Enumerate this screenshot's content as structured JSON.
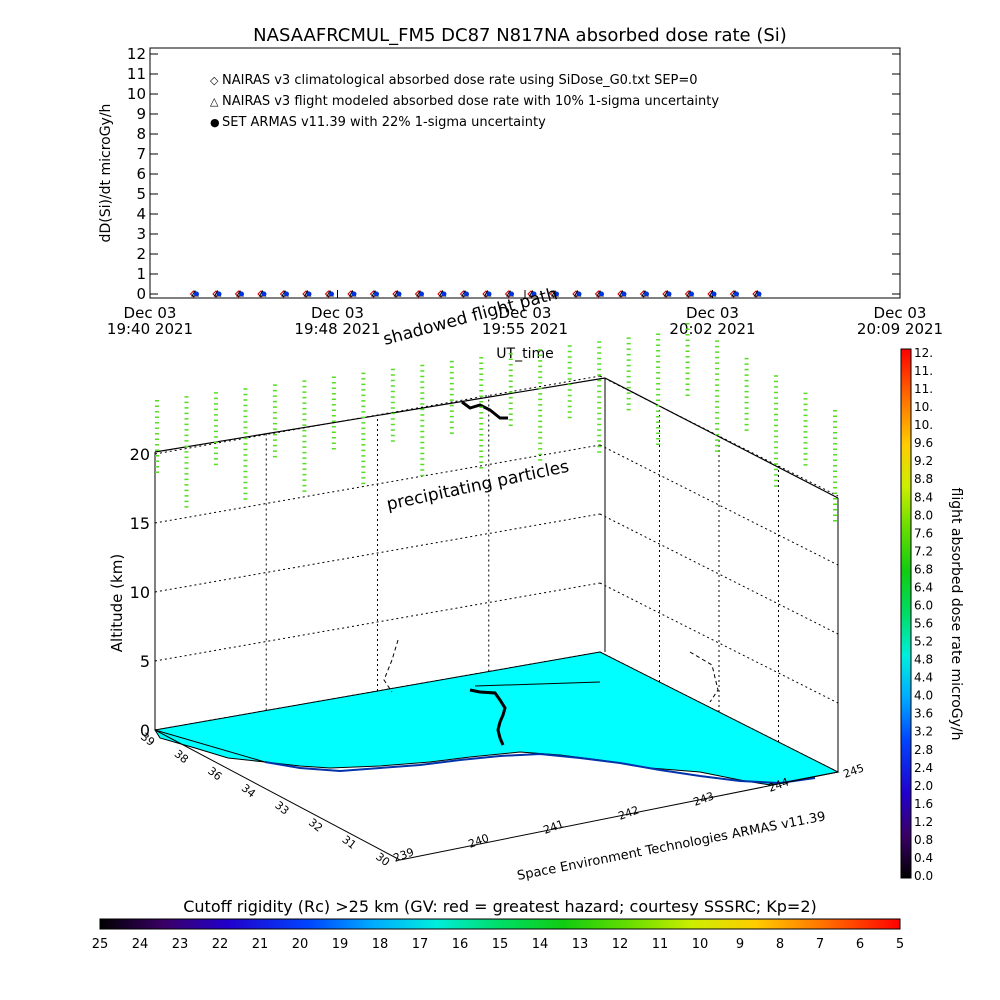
{
  "chart_data": [
    {
      "type": "scatter",
      "title": "NASAAFRCMUL_FM5 DC87 N817NA absorbed dose rate (Si)",
      "ylabel": "dD(Si)/dt microGy/h",
      "xlabel": "UT_time",
      "ylim": [
        0,
        12
      ],
      "y_ticks": [
        "0",
        "1",
        "2",
        "3",
        "4",
        "5",
        "6",
        "7",
        "8",
        "9",
        "10",
        "11",
        "12"
      ],
      "x_ticks": [
        {
          "top": "Dec 03",
          "bottom": "19:40 2021"
        },
        {
          "top": "Dec 03",
          "bottom": "19:48 2021"
        },
        {
          "top": "Dec 03",
          "bottom": "19:55 2021"
        },
        {
          "top": "Dec 03",
          "bottom": "20:02 2021"
        },
        {
          "top": "Dec 03",
          "bottom": "20:09 2021"
        }
      ],
      "legend": [
        {
          "symbol": "◇",
          "color": "#cc0000",
          "text": "NAIRAS v3 climatological absorbed dose rate using SiDose_G0.txt SEP=0"
        },
        {
          "symbol": "△",
          "color": "#000000",
          "text": "NAIRAS v3 flight modeled absorbed dose rate with 10% 1-sigma uncertainty"
        },
        {
          "symbol": "●",
          "color": "#0033dd",
          "text": "SET ARMAS v11.39 with 22% 1-sigma uncertainty"
        }
      ],
      "series": [
        {
          "name": "NAIRAS v3 climatological absorbed dose rate using SiDose_G0.txt SEP=0",
          "values": [
            0,
            0,
            0,
            0,
            0,
            0,
            0,
            0,
            0,
            0,
            0,
            0,
            0,
            0,
            0,
            0,
            0,
            0,
            0,
            0,
            0,
            0,
            0,
            0,
            0,
            0
          ]
        },
        {
          "name": "NAIRAS v3 flight modeled absorbed dose rate with 10% 1-sigma uncertainty",
          "values": [
            0,
            0,
            0,
            0,
            0,
            0,
            0,
            0,
            0,
            0,
            0,
            0,
            0,
            0,
            0,
            0,
            0,
            0,
            0,
            0,
            0,
            0,
            0,
            0,
            0,
            0
          ]
        },
        {
          "name": "SET ARMAS v11.39 with 22% 1-sigma uncertainty",
          "values": [
            0,
            0,
            0,
            0,
            0,
            0,
            0,
            0,
            0,
            0,
            0,
            0,
            0,
            0,
            0,
            0,
            0,
            0,
            0,
            0,
            0,
            0,
            0,
            0,
            0,
            0
          ]
        }
      ],
      "x_fraction": [
        0.06,
        0.09,
        0.12,
        0.15,
        0.18,
        0.21,
        0.24,
        0.27,
        0.3,
        0.33,
        0.36,
        0.39,
        0.42,
        0.45,
        0.48,
        0.51,
        0.54,
        0.57,
        0.6,
        0.63,
        0.66,
        0.69,
        0.72,
        0.75,
        0.78,
        0.81
      ]
    },
    {
      "type": "scatter",
      "zlabel": "Altitude (km)",
      "z_ticks": [
        "0",
        "5",
        "10",
        "15",
        "20"
      ],
      "zlim": [
        0,
        23
      ],
      "lat_ticks": [
        "30",
        "31",
        "32",
        "33",
        "34",
        "36",
        "38",
        "39"
      ],
      "lon_ticks": [
        "239",
        "240",
        "241",
        "242",
        "243",
        "244",
        "245"
      ],
      "annotations": [
        "shadowed flight path",
        "precipitating particles"
      ],
      "footer": "Space Environment Technologies ARMAS v11.39",
      "surface_color": "#00ffff"
    }
  ],
  "colorbar_right": {
    "label": "flight absorbed dose rate microGy/h",
    "ticks": [
      "0.0",
      "0.4",
      "0.8",
      "1.2",
      "1.6",
      "2.0",
      "2.4",
      "2.8",
      "3.2",
      "3.6",
      "4.0",
      "4.4",
      "4.8",
      "5.2",
      "5.6",
      "6.0",
      "6.4",
      "6.8",
      "7.2",
      "7.6",
      "8.0",
      "8.4",
      "8.8",
      "9.2",
      "9.6",
      "10.",
      "10.",
      "11.",
      "11.",
      "12."
    ]
  },
  "colorbar_bottom": {
    "title": "Cutoff rigidity (Rc) >25 km (GV: red = greatest hazard; courtesy SSSRC; Kp=2)",
    "ticks": [
      "25",
      "24",
      "23",
      "22",
      "21",
      "20",
      "19",
      "18",
      "17",
      "16",
      "15",
      "14",
      "13",
      "12",
      "11",
      "10",
      "9",
      "8",
      "7",
      "6",
      "5"
    ]
  },
  "colors": {
    "cyan": "#00ffff",
    "green": "#55dd22",
    "blue": "#0000ff",
    "red": "#ff0000"
  }
}
